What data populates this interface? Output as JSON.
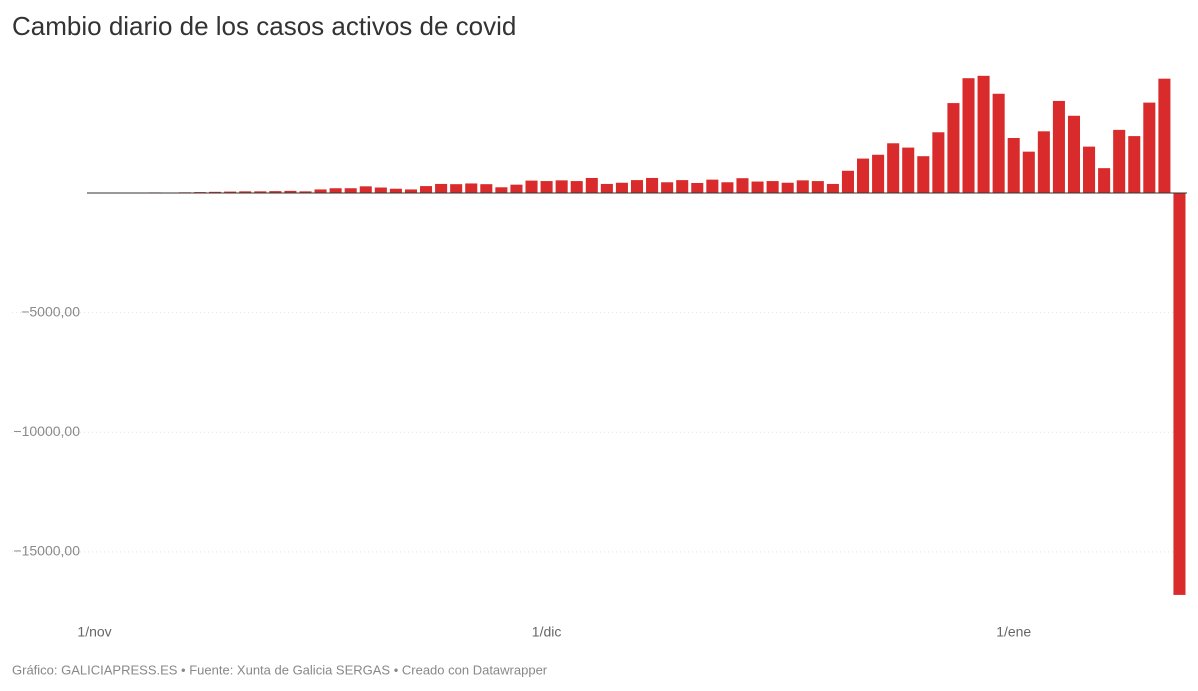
{
  "chart_data": {
    "type": "bar",
    "title": "Cambio diario de los casos activos de covid",
    "footer": "Gráfico: GALICIAPRESS.ES • Fuente: Xunta de Galicia SERGAS • Creado con Datawrapper",
    "categories": [
      "1/nov",
      null,
      null,
      null,
      null,
      null,
      null,
      null,
      null,
      null,
      null,
      null,
      null,
      null,
      null,
      null,
      null,
      null,
      null,
      null,
      null,
      null,
      null,
      null,
      null,
      null,
      null,
      null,
      null,
      null,
      "1/dic",
      null,
      null,
      null,
      null,
      null,
      null,
      null,
      null,
      null,
      null,
      null,
      null,
      null,
      null,
      null,
      null,
      null,
      null,
      null,
      null,
      null,
      null,
      null,
      null,
      null,
      null,
      null,
      null,
      null,
      null,
      "1/ene",
      null,
      null,
      null,
      null,
      null,
      null,
      null,
      null,
      null,
      null,
      null
    ],
    "values": [
      10,
      15,
      20,
      15,
      25,
      20,
      30,
      40,
      50,
      60,
      70,
      70,
      80,
      90,
      70,
      150,
      200,
      200,
      280,
      230,
      180,
      150,
      290,
      380,
      370,
      400,
      370,
      240,
      350,
      520,
      500,
      530,
      500,
      630,
      380,
      430,
      540,
      630,
      450,
      540,
      420,
      560,
      450,
      620,
      480,
      500,
      430,
      530,
      500,
      380,
      930,
      1440,
      1600,
      2080,
      1900,
      1540,
      2540,
      3760,
      4800,
      4900,
      4150,
      2300,
      1730,
      2580,
      3850,
      3230,
      1940,
      1040,
      2640,
      2380,
      3780,
      4780,
      -16800
    ],
    "color": "#d92b2b",
    "ylim": [
      -17000,
      6000
    ],
    "yticks": [
      {
        "value": -15000,
        "label": "−15000,00"
      },
      {
        "value": -10000,
        "label": "−10000,00"
      },
      {
        "value": -5000,
        "label": "−5000,00"
      }
    ],
    "grid": true
  }
}
